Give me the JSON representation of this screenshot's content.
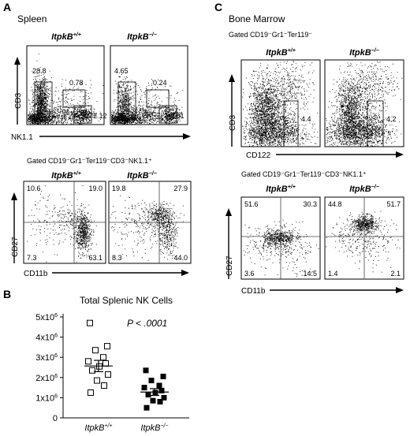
{
  "panel_A": {
    "letter": "A",
    "tissue": "Spleen",
    "genotype_labels": [
      {
        "base": "ItpkB",
        "sup": "+/+"
      },
      {
        "base": "ItpkB",
        "sup": "−/−"
      }
    ],
    "top_axes": {
      "x": "NK1.1",
      "y": "CD3"
    },
    "top_gate_values": [
      {
        "left": "28.8",
        "mid": "0.78",
        "right": "2.12"
      },
      {
        "left": "4.65",
        "mid": "0.24",
        "right": "3.01"
      }
    ],
    "gating_label": "Gated CD19⁻Gr1⁻Ter119⁻CD3⁻NK1.1⁺",
    "bottom_axes": {
      "x": "CD11b",
      "y": "CD27"
    },
    "quadrants": [
      {
        "ul": "10.6",
        "ur": "19.0",
        "ll": "7.3",
        "lr": "63.1"
      },
      {
        "ul": "19.8",
        "ur": "27.9",
        "ll": "8.3",
        "lr": "44.0"
      }
    ]
  },
  "panel_B": {
    "letter": "B",
    "title": "Total Splenic NK Cells",
    "pvalue": "P < .0001",
    "chart_data": {
      "type": "scatter",
      "title": "Total Splenic NK Cells",
      "categories": [
        "ItpkB+/+",
        "ItpkB−/−"
      ],
      "ylim": [
        0,
        5000000
      ],
      "yticks": [
        {
          "value": 0,
          "base": "0",
          "exp": ""
        },
        {
          "value": 1000000,
          "base": "1x10",
          "exp": "6"
        },
        {
          "value": 2000000,
          "base": "2x10",
          "exp": "6"
        },
        {
          "value": 3000000,
          "base": "3x10",
          "exp": "6"
        },
        {
          "value": 4000000,
          "base": "4x10",
          "exp": "6"
        },
        {
          "value": 5000000,
          "base": "5x10",
          "exp": "6"
        }
      ],
      "series": [
        {
          "marker": "open-square",
          "values": [
            4700000,
            3550000,
            3350000,
            3000000,
            2800000,
            2700000,
            2550000,
            2350000,
            2150000,
            1850000,
            1600000,
            1250000
          ]
        },
        {
          "marker": "filled-square",
          "values": [
            2350000,
            2050000,
            1850000,
            1600000,
            1500000,
            1350000,
            1250000,
            1150000,
            1000000,
            850000,
            800000,
            500000
          ]
        }
      ],
      "means": [
        2570000,
        1280000
      ],
      "sem": [
        280000,
        170000
      ]
    }
  },
  "panel_C": {
    "letter": "C",
    "tissue": "Bone Marrow",
    "gating_top": "Gated CD19⁻Gr1⁻Ter119⁻",
    "genotype_labels": [
      {
        "base": "ItpkB",
        "sup": "+/+"
      },
      {
        "base": "ItpkB",
        "sup": "−/−"
      }
    ],
    "top_axes": {
      "x": "CD122",
      "y": "CD3"
    },
    "top_gate_values": [
      "4.4",
      "4.2"
    ],
    "gating_bottom": "Gated CD19⁻Gr1⁻Ter119⁻CD3⁻NK1.1⁺",
    "bottom_axes": {
      "x": "CD11b",
      "y": "CD27"
    },
    "quadrants": [
      {
        "ul": "51.6",
        "ur": "30.3",
        "ll": "3.6",
        "lr": "14.5"
      },
      {
        "ul": "44.8",
        "ur": "51.7",
        "ll": "1.4",
        "lr": "2.1"
      }
    ]
  }
}
